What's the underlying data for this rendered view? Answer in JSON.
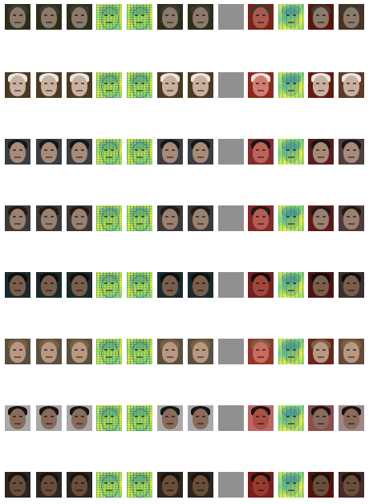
{
  "grid": {
    "rows": [
      {
        "bg": "#2b2f1a",
        "skin": "#8b7a6a",
        "hair": "#3a3a32"
      },
      {
        "bg": "#4a3a22",
        "skin": "#c9b0a0",
        "hair": "#e8e6e0"
      },
      {
        "bg": "#3a3e44",
        "skin": "#a88a78",
        "hair": "#161616"
      },
      {
        "bg": "#3c3a38",
        "skin": "#9a8070",
        "hair": "#1e1a18"
      },
      {
        "bg": "#1a2a2c",
        "skin": "#7a5e4c",
        "hair": "#0e0e0e"
      },
      {
        "bg": "#5a5040",
        "skin": "#b89880",
        "hair": "#7a6040"
      },
      {
        "bg": "#a8a8a8",
        "skin": "#8a6a5a",
        "hair": "#141414"
      },
      {
        "bg": "#2c2620",
        "skin": "#6a4e3a",
        "hair": "#18120e"
      }
    ],
    "column_modes": [
      "photo",
      "photo",
      "photo",
      "heat",
      "heat",
      "photo",
      "photo",
      "gray",
      "redmask",
      "heatlight",
      "darkred",
      "fade"
    ]
  }
}
